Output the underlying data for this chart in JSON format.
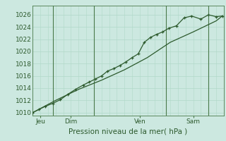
{
  "background_color": "#cce8e0",
  "grid_color": "#b0d8c8",
  "line_color": "#2d5a2d",
  "vline_color": "#4a7a4a",
  "ylim": [
    1009.5,
    1027.5
  ],
  "xlim": [
    0,
    12.5
  ],
  "xlabel": "Pression niveau de la mer( hPa )",
  "xlabel_fontsize": 7.5,
  "tick_fontsize": 6.5,
  "x_tick_labels": [
    "Jeu",
    "Dim",
    "Ven",
    "Sam"
  ],
  "x_tick_positions": [
    0.5,
    2.5,
    7.0,
    10.5
  ],
  "yticks": [
    1010,
    1012,
    1014,
    1016,
    1018,
    1020,
    1022,
    1024,
    1026
  ],
  "vline_positions": [
    1.3,
    4.0,
    8.7,
    11.5
  ],
  "line1_x": [
    0.0,
    0.4,
    0.8,
    1.3,
    1.8,
    2.3,
    2.8,
    3.3,
    3.7,
    4.1,
    4.5,
    4.9,
    5.3,
    5.7,
    6.1,
    6.5,
    6.9,
    7.3,
    7.7,
    8.1,
    8.5,
    8.9,
    9.4,
    9.9,
    10.4,
    11.0,
    11.5,
    12.0,
    12.4
  ],
  "line1_y": [
    1010.0,
    1010.5,
    1011.0,
    1011.5,
    1012.1,
    1013.0,
    1013.8,
    1014.5,
    1015.0,
    1015.5,
    1016.0,
    1016.8,
    1017.2,
    1017.7,
    1018.3,
    1019.0,
    1019.6,
    1021.5,
    1022.3,
    1022.8,
    1023.2,
    1023.8,
    1024.2,
    1025.5,
    1025.8,
    1025.3,
    1026.0,
    1025.7,
    1025.8
  ],
  "line2_x": [
    0.0,
    1.5,
    3.0,
    4.5,
    6.0,
    7.5,
    9.0,
    10.5,
    12.0,
    12.4
  ],
  "line2_y": [
    1010.0,
    1012.0,
    1013.8,
    1015.3,
    1017.0,
    1019.0,
    1021.5,
    1023.2,
    1025.0,
    1025.8
  ],
  "total_x": 12.5
}
